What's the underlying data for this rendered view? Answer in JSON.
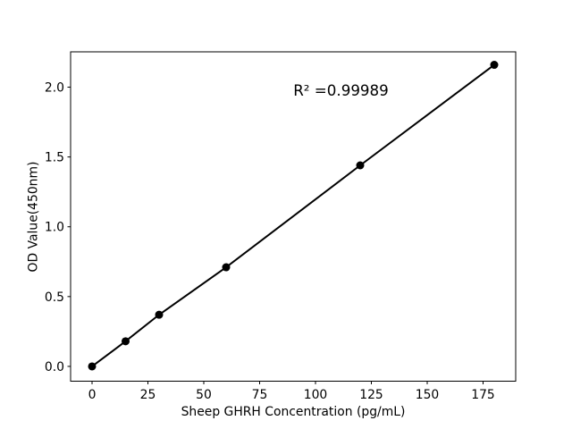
{
  "chart_data": {
    "type": "line",
    "title": "",
    "xlabel": "Sheep GHRH Concentration (pg/mL)",
    "ylabel": "OD Value(450nm)",
    "x": [
      0,
      15,
      30,
      60,
      120,
      180
    ],
    "y": [
      0.0,
      0.18,
      0.37,
      0.71,
      1.44,
      2.16
    ],
    "xticks": [
      {
        "value": 0,
        "label": "0"
      },
      {
        "value": 25,
        "label": "25"
      },
      {
        "value": 50,
        "label": "50"
      },
      {
        "value": 75,
        "label": "75"
      },
      {
        "value": 100,
        "label": "100"
      },
      {
        "value": 125,
        "label": "125"
      },
      {
        "value": 150,
        "label": "150"
      },
      {
        "value": 175,
        "label": "175"
      }
    ],
    "yticks": [
      {
        "value": 0.0,
        "label": "0.0"
      },
      {
        "value": 0.5,
        "label": "0.5"
      },
      {
        "value": 1.0,
        "label": "1.0"
      },
      {
        "value": 1.5,
        "label": "1.5"
      },
      {
        "value": 2.0,
        "label": "2.0"
      }
    ],
    "xlim": [
      -9.6,
      189.6
    ],
    "ylim": [
      -0.106,
      2.253
    ],
    "annotation": {
      "text": "R² =0.99989",
      "x": 111.4,
      "y": 1.94
    },
    "grid": false,
    "legend": "none",
    "marker": "o",
    "line_color": "#000000",
    "marker_color": "#000000",
    "axis_color": "#000000",
    "background_color": "#ffffff"
  }
}
